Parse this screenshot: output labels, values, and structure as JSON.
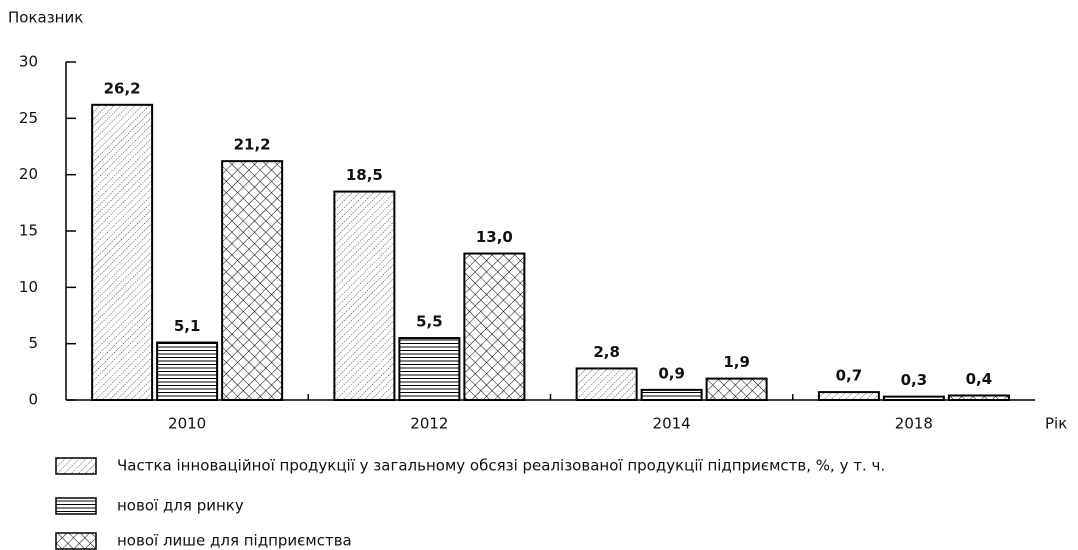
{
  "chart_data": {
    "type": "bar",
    "y_label": "Показник",
    "x_label": "Рік",
    "categories": [
      "2010",
      "2012",
      "2014",
      "2018"
    ],
    "series": [
      {
        "name": "Частка інноваційної продукції у загальному обсязі реалізованої продукції підприємств, %, у т. ч.",
        "color": "#000000",
        "pattern": "diagonal",
        "values": [
          26.2,
          18.5,
          2.8,
          0.7
        ],
        "value_labels": [
          "26,2",
          "18,5",
          "2,8",
          "0,7"
        ]
      },
      {
        "name": "нової для ринку",
        "color": "#000000",
        "pattern": "horizontal",
        "values": [
          5.1,
          5.5,
          0.9,
          0.3
        ],
        "value_labels": [
          "5,1",
          "5,5",
          "0,9",
          "0,3"
        ]
      },
      {
        "name": "нової лише для підприємства",
        "color": "#000000",
        "pattern": "crosshatch",
        "values": [
          21.2,
          13.0,
          1.9,
          0.4
        ],
        "value_labels": [
          "21,2",
          "13,0",
          "1,9",
          "0,4"
        ]
      }
    ],
    "ylim": [
      0,
      30
    ],
    "yticks": [
      0,
      5,
      10,
      15,
      20,
      25,
      30
    ],
    "grid": false
  }
}
